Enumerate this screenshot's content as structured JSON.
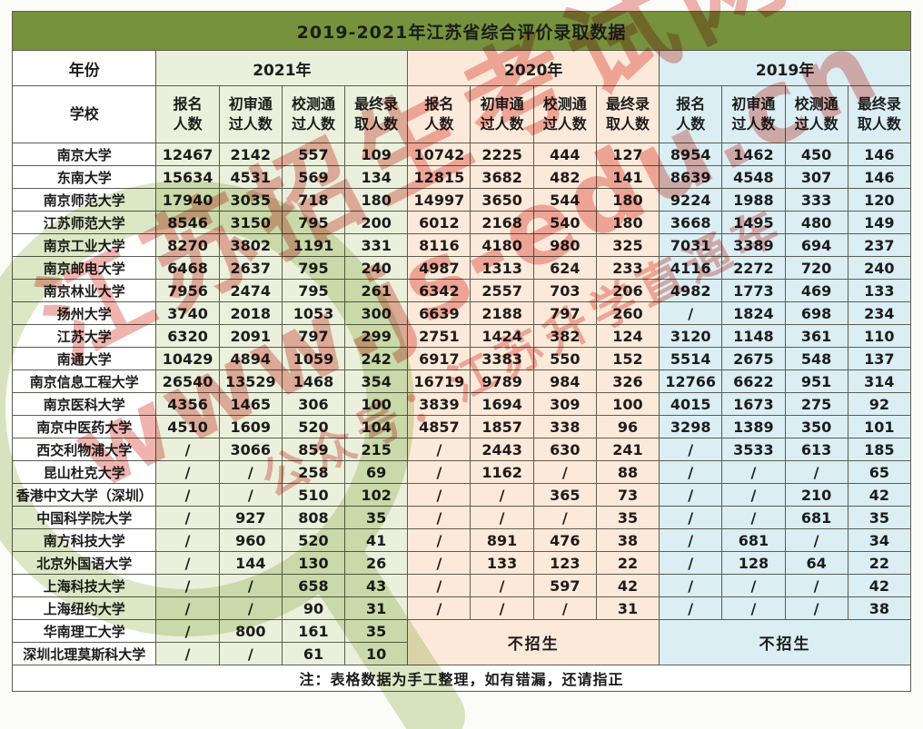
{
  "title": "2019-2021年江苏省综合评价录取数据",
  "header": {
    "year_label": "年份",
    "school_label": "学校",
    "years": [
      "2021年",
      "2020年",
      "2019年"
    ],
    "sub_columns": [
      "报名\n人数",
      "初审通\n过人数",
      "校测通\n过人数",
      "最终录\n取人数"
    ]
  },
  "rows": [
    {
      "school": "南京大学",
      "y2021": [
        "12467",
        "2142",
        "557",
        "109"
      ],
      "y2020": [
        "10742",
        "2225",
        "444",
        "127"
      ],
      "y2019": [
        "8954",
        "1462",
        "450",
        "146"
      ]
    },
    {
      "school": "东南大学",
      "y2021": [
        "15634",
        "4531",
        "569",
        "134"
      ],
      "y2020": [
        "12815",
        "3682",
        "482",
        "141"
      ],
      "y2019": [
        "8639",
        "4548",
        "307",
        "146"
      ]
    },
    {
      "school": "南京师范大学",
      "y2021": [
        "17940",
        "3035",
        "718",
        "180"
      ],
      "y2020": [
        "14997",
        "3650",
        "544",
        "180"
      ],
      "y2019": [
        "9224",
        "1988",
        "333",
        "120"
      ]
    },
    {
      "school": "江苏师范大学",
      "y2021": [
        "8546",
        "3150",
        "795",
        "200"
      ],
      "y2020": [
        "6012",
        "2168",
        "540",
        "180"
      ],
      "y2019": [
        "3668",
        "1495",
        "480",
        "149"
      ]
    },
    {
      "school": "南京工业大学",
      "y2021": [
        "8270",
        "3802",
        "1191",
        "331"
      ],
      "y2020": [
        "8116",
        "4180",
        "980",
        "325"
      ],
      "y2019": [
        "7031",
        "3389",
        "694",
        "237"
      ]
    },
    {
      "school": "南京邮电大学",
      "y2021": [
        "6468",
        "2637",
        "795",
        "240"
      ],
      "y2020": [
        "4987",
        "1313",
        "624",
        "233"
      ],
      "y2019": [
        "4116",
        "2272",
        "720",
        "240"
      ]
    },
    {
      "school": "南京林业大学",
      "y2021": [
        "7956",
        "2474",
        "795",
        "261"
      ],
      "y2020": [
        "6342",
        "2557",
        "703",
        "206"
      ],
      "y2019": [
        "4982",
        "1773",
        "469",
        "133"
      ]
    },
    {
      "school": "扬州大学",
      "y2021": [
        "3740",
        "2018",
        "1053",
        "300"
      ],
      "y2020": [
        "6639",
        "2188",
        "797",
        "260"
      ],
      "y2019": [
        "/",
        "1824",
        "698",
        "234"
      ]
    },
    {
      "school": "江苏大学",
      "y2021": [
        "6320",
        "2091",
        "797",
        "299"
      ],
      "y2020": [
        "2751",
        "1424",
        "382",
        "124"
      ],
      "y2019": [
        "3120",
        "1148",
        "361",
        "110"
      ]
    },
    {
      "school": "南通大学",
      "y2021": [
        "10429",
        "4894",
        "1059",
        "242"
      ],
      "y2020": [
        "6917",
        "3383",
        "550",
        "152"
      ],
      "y2019": [
        "5514",
        "2675",
        "548",
        "137"
      ]
    },
    {
      "school": "南京信息工程大学",
      "y2021": [
        "26540",
        "13529",
        "1468",
        "354"
      ],
      "y2020": [
        "16719",
        "9789",
        "984",
        "326"
      ],
      "y2019": [
        "12766",
        "6622",
        "951",
        "314"
      ]
    },
    {
      "school": "南京医科大学",
      "y2021": [
        "4356",
        "1465",
        "306",
        "100"
      ],
      "y2020": [
        "3839",
        "1694",
        "309",
        "100"
      ],
      "y2019": [
        "4015",
        "1673",
        "275",
        "92"
      ]
    },
    {
      "school": "南京中医药大学",
      "y2021": [
        "4510",
        "1609",
        "520",
        "104"
      ],
      "y2020": [
        "4857",
        "1857",
        "338",
        "96"
      ],
      "y2019": [
        "3298",
        "1389",
        "350",
        "101"
      ]
    },
    {
      "school": "西交利物浦大学",
      "y2021": [
        "/",
        "3066",
        "859",
        "215"
      ],
      "y2020": [
        "/",
        "2443",
        "630",
        "241"
      ],
      "y2019": [
        "/",
        "3533",
        "613",
        "185"
      ]
    },
    {
      "school": "昆山杜克大学",
      "y2021": [
        "/",
        "/",
        "258",
        "69"
      ],
      "y2020": [
        "/",
        "1162",
        "/",
        "88"
      ],
      "y2019": [
        "/",
        "/",
        "/",
        "65"
      ]
    },
    {
      "school": "香港中文大学（深圳）",
      "y2021": [
        "/",
        "/",
        "510",
        "102"
      ],
      "y2020": [
        "/",
        "/",
        "365",
        "73"
      ],
      "y2019": [
        "/",
        "/",
        "210",
        "42"
      ]
    },
    {
      "school": "中国科学院大学",
      "y2021": [
        "/",
        "927",
        "808",
        "35"
      ],
      "y2020": [
        "/",
        "/",
        "/",
        "35"
      ],
      "y2019": [
        "/",
        "/",
        "681",
        "35"
      ]
    },
    {
      "school": "南方科技大学",
      "y2021": [
        "/",
        "960",
        "520",
        "41"
      ],
      "y2020": [
        "/",
        "891",
        "476",
        "38"
      ],
      "y2019": [
        "/",
        "681",
        "/",
        "34"
      ]
    },
    {
      "school": "北京外国语大学",
      "y2021": [
        "/",
        "144",
        "130",
        "26"
      ],
      "y2020": [
        "/",
        "133",
        "123",
        "22"
      ],
      "y2019": [
        "/",
        "128",
        "64",
        "22"
      ]
    },
    {
      "school": "上海科技大学",
      "y2021": [
        "/",
        "/",
        "658",
        "43"
      ],
      "y2020": [
        "/",
        "/",
        "597",
        "42"
      ],
      "y2019": [
        "/",
        "/",
        "/",
        "42"
      ]
    },
    {
      "school": "上海纽约大学",
      "y2021": [
        "/",
        "/",
        "90",
        "31"
      ],
      "y2020": [
        "/",
        "/",
        "/",
        "31"
      ],
      "y2019": [
        "/",
        "/",
        "/",
        "38"
      ]
    },
    {
      "school": "华南理工大学",
      "y2021": [
        "/",
        "800",
        "161",
        "35"
      ],
      "y2020": null,
      "y2019": null,
      "no_enroll_lead": true
    },
    {
      "school": "深圳北理莫斯科大学",
      "y2021": [
        "/",
        "/",
        "61",
        "10"
      ],
      "y2020": null,
      "y2019": null
    }
  ],
  "no_enroll_label": "不招生",
  "note": "注：表格数据为手工整理，如有错漏，还请指正",
  "watermark": {
    "line1": "江苏招生考试网",
    "line2": "www.js-edu.cn",
    "line3": "公众号：江苏升学直通车"
  },
  "colors": {
    "title_bar": "#76923C",
    "section_2021": "#EAF0DB",
    "section_2020": "#FDE9D9",
    "section_2019": "#DAEEF3",
    "watermark_red": "#DB584E",
    "watermark_green": "#CDDEAC"
  }
}
